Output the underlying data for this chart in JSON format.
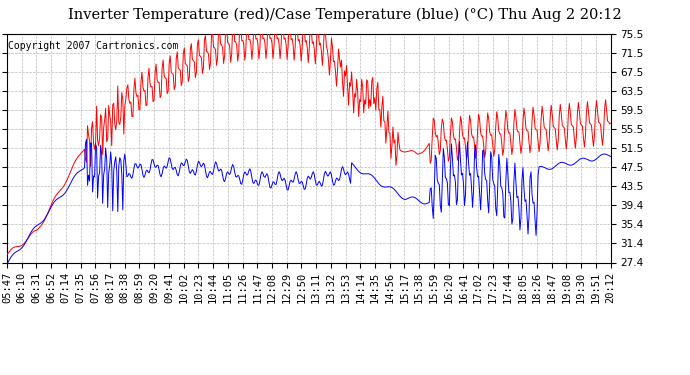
{
  "title": "Inverter Temperature (red)/Case Temperature (blue) (°C) Thu Aug 2 20:12",
  "copyright": "Copyright 2007 Cartronics.com",
  "yticks": [
    27.4,
    31.4,
    35.4,
    39.4,
    43.5,
    47.5,
    51.5,
    55.5,
    59.5,
    63.5,
    67.5,
    71.5,
    75.5
  ],
  "ymin": 27.4,
  "ymax": 75.5,
  "red_color": "#ff0000",
  "blue_color": "#0000ff",
  "bg_color": "#ffffff",
  "grid_color": "#bbbbbb",
  "title_fontsize": 10.5,
  "copyright_fontsize": 7,
  "tick_fontsize": 7.5,
  "num_points": 600,
  "xtick_labels": [
    "05:47",
    "06:10",
    "06:31",
    "06:52",
    "07:14",
    "07:35",
    "07:56",
    "08:17",
    "08:38",
    "08:59",
    "09:20",
    "09:41",
    "10:02",
    "10:23",
    "10:44",
    "11:05",
    "11:26",
    "11:47",
    "12:08",
    "12:29",
    "12:50",
    "13:11",
    "13:32",
    "13:53",
    "14:14",
    "14:35",
    "14:56",
    "15:17",
    "15:38",
    "15:59",
    "16:20",
    "16:41",
    "17:02",
    "17:23",
    "17:44",
    "18:05",
    "18:26",
    "18:47",
    "19:08",
    "19:30",
    "19:51",
    "20:12"
  ]
}
